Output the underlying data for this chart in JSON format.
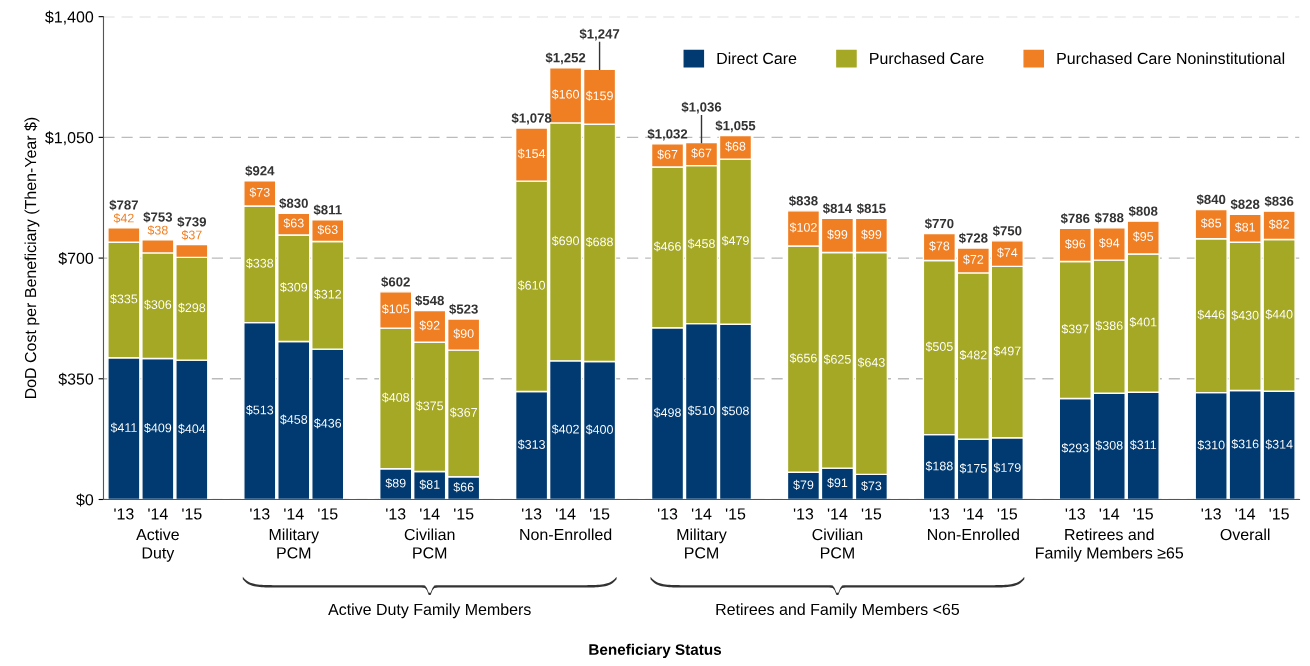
{
  "chart_data": {
    "type": "bar",
    "stacked": true,
    "ylabel": "DoD Cost per Beneficiary (Then-Year $)",
    "categories": [
      "'13",
      "'14",
      "'15",
      null,
      "'13",
      "'14",
      "'15",
      null,
      "'13",
      "'14",
      "'15",
      null,
      "'13",
      "'14",
      "'15",
      null,
      "'13",
      "'14",
      "'15",
      null,
      "'13",
      "'14",
      "'15",
      null,
      "'13",
      "'14",
      "'15",
      null,
      "'13",
      "'14",
      "'15",
      null,
      "'13",
      "'14",
      "'15"
    ],
    "series": [
      {
        "name": "Direct Care",
        "color": "#003a70",
        "values": [
          411,
          409,
          404,
          null,
          513,
          458,
          436,
          null,
          89,
          81,
          66,
          null,
          313,
          402,
          400,
          null,
          498,
          510,
          508,
          null,
          79,
          91,
          73,
          null,
          188,
          175,
          179,
          null,
          293,
          308,
          311,
          null,
          310,
          316,
          314
        ],
        "value_labels": [
          "$411",
          "$409",
          "$404",
          null,
          "$513",
          "$458",
          "$436",
          null,
          "$89",
          "$81",
          "$66",
          null,
          "$313",
          "$402",
          "$400",
          null,
          "$498",
          "$510",
          "$508",
          null,
          "$79",
          "$91",
          "$73",
          null,
          "$188",
          "$175",
          "$179",
          null,
          "$293",
          "$308",
          "$311",
          null,
          "$310",
          "$316",
          "$314"
        ]
      },
      {
        "name": "Purchased Care",
        "color": "#a5a825",
        "values": [
          335,
          306,
          298,
          null,
          338,
          309,
          312,
          null,
          408,
          375,
          367,
          null,
          610,
          690,
          688,
          null,
          466,
          458,
          479,
          null,
          656,
          625,
          643,
          null,
          505,
          482,
          497,
          null,
          397,
          386,
          401,
          null,
          446,
          430,
          440
        ],
        "value_labels": [
          "$335",
          "$306",
          "$298",
          null,
          "$338",
          "$309",
          "$312",
          null,
          "$408",
          "$375",
          "$367",
          null,
          "$610",
          "$690",
          "$688",
          null,
          "$466",
          "$458",
          "$479",
          null,
          "$656",
          "$625",
          "$643",
          null,
          "$505",
          "$482",
          "$497",
          null,
          "$397",
          "$386",
          "$401",
          null,
          "$446",
          "$430",
          "$440"
        ]
      },
      {
        "name": "Purchased Care Noninstitutional",
        "color": "#f07f23",
        "values": [
          42,
          38,
          37,
          null,
          73,
          63,
          63,
          null,
          105,
          92,
          90,
          null,
          154,
          160,
          159,
          null,
          67,
          67,
          68,
          null,
          102,
          99,
          99,
          null,
          78,
          72,
          74,
          null,
          96,
          94,
          95,
          null,
          85,
          81,
          82
        ],
        "value_labels": [
          "$42",
          "$38",
          "$37",
          null,
          "$73",
          "$63",
          "$63",
          null,
          "$105",
          "$92",
          "$90",
          null,
          "$154",
          "$160",
          "$159",
          null,
          "$67",
          "$67",
          "$68",
          null,
          "$102",
          "$99",
          "$99",
          null,
          "$78",
          "$72",
          "$74",
          null,
          "$96",
          "$94",
          "$95",
          null,
          "$85",
          "$81",
          "$82"
        ]
      }
    ],
    "totals": [
      "$787",
      "$753",
      "$739",
      null,
      "$924",
      "$830",
      "$811",
      null,
      "$602",
      "$548",
      "$523",
      null,
      "$1,078",
      "$1,252",
      "$1,247",
      null,
      "$1,032",
      "$1,036",
      "$1,055",
      null,
      "$838",
      "$814",
      "$815",
      null,
      "$770",
      "$728",
      "$750",
      null,
      "$786",
      "$788",
      "$808",
      null,
      "$840",
      "$828",
      "$836"
    ],
    "annotations": [
      "Active\nDuty",
      "Military\nPCM",
      "Civilian\nPCM",
      "Non-Enrolled",
      "Military\nPCM",
      "Civilian\nPCM",
      "Non-Enrolled",
      "Retirees and\nFamily Members ≥65",
      "Overall",
      "Active Duty Family Members",
      "Retirees and Family Members <65",
      "Beneficiary Status"
    ],
    "ylim": [
      0,
      1400
    ],
    "yticks": [
      {
        "value": 0,
        "label": "$0"
      },
      {
        "value": 350,
        "label": "$350"
      },
      {
        "value": 700,
        "label": "$700"
      },
      {
        "value": 1050,
        "label": "$1,050"
      },
      {
        "value": 1400,
        "label": "$1,400"
      }
    ],
    "grid": "y",
    "legend": "top right"
  }
}
